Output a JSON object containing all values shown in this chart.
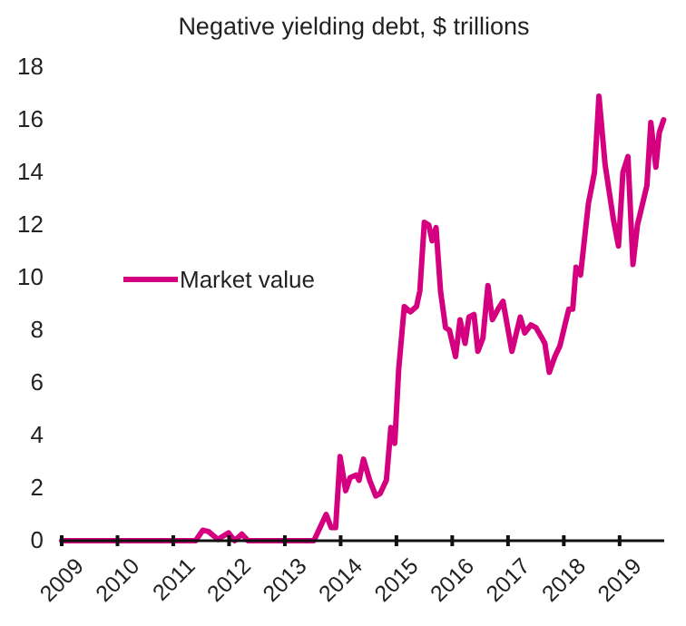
{
  "chart_data": {
    "type": "line",
    "title": "Negative yielding debt, $ trillions",
    "xlim": [
      2009,
      2019.8
    ],
    "xticks": [
      2009,
      2010,
      2011,
      2012,
      2013,
      2014,
      2015,
      2016,
      2017,
      2018,
      2019
    ],
    "ylim": [
      0,
      18
    ],
    "yticks": [
      0,
      2,
      4,
      6,
      8,
      10,
      12,
      14,
      16,
      18
    ],
    "grid": false,
    "legend": "left",
    "line_style": "solid",
    "series": [
      {
        "name": "Market value",
        "color": "#d4007f",
        "x": [
          2009,
          2011.4,
          2011.53,
          2011.63,
          2011.8,
          2011.99,
          2012.1,
          2012.23,
          2012.34,
          2013.52,
          2013.74,
          2013.83,
          2013.91,
          2013.99,
          2014.09,
          2014.17,
          2014.28,
          2014.33,
          2014.41,
          2014.52,
          2014.63,
          2014.71,
          2014.82,
          2014.9,
          2014.97,
          2015.04,
          2015.14,
          2015.25,
          2015.36,
          2015.42,
          2015.5,
          2015.58,
          2015.64,
          2015.71,
          2015.79,
          2015.88,
          2015.95,
          2016.06,
          2016.14,
          2016.23,
          2016.3,
          2016.39,
          2016.46,
          2016.55,
          2016.64,
          2016.72,
          2016.82,
          2016.91,
          2017.07,
          2017.22,
          2017.3,
          2017.41,
          2017.5,
          2017.61,
          2017.66,
          2017.74,
          2017.84,
          2017.93,
          2018.02,
          2018.09,
          2018.16,
          2018.22,
          2018.3,
          2018.44,
          2018.55,
          2018.63,
          2018.74,
          2018.89,
          2018.98,
          2019.06,
          2019.15,
          2019.24,
          2019.32,
          2019.49,
          2019.56,
          2019.65,
          2019.71,
          2019.79
        ],
        "values": [
          0,
          0,
          0.4,
          0.35,
          0.05,
          0.3,
          0,
          0.25,
          0,
          0,
          1.0,
          0.5,
          0.5,
          3.2,
          1.9,
          2.4,
          2.5,
          2.3,
          3.1,
          2.3,
          1.7,
          1.8,
          2.3,
          4.3,
          3.7,
          6.5,
          8.9,
          8.7,
          8.9,
          9.5,
          12.1,
          12.0,
          11.4,
          11.9,
          9.5,
          8.1,
          8.0,
          7.0,
          8.4,
          7.5,
          8.5,
          8.6,
          7.2,
          7.7,
          9.7,
          8.4,
          8.8,
          9.1,
          7.2,
          8.5,
          7.9,
          8.2,
          8.1,
          7.7,
          7.5,
          6.4,
          7.0,
          7.4,
          8.2,
          8.8,
          8.8,
          10.4,
          10.1,
          12.8,
          14.0,
          16.9,
          14.3,
          12.2,
          11.2,
          14.0,
          14.6,
          10.5,
          12.0,
          13.5,
          15.9,
          14.2,
          15.5,
          16.0
        ]
      }
    ]
  }
}
